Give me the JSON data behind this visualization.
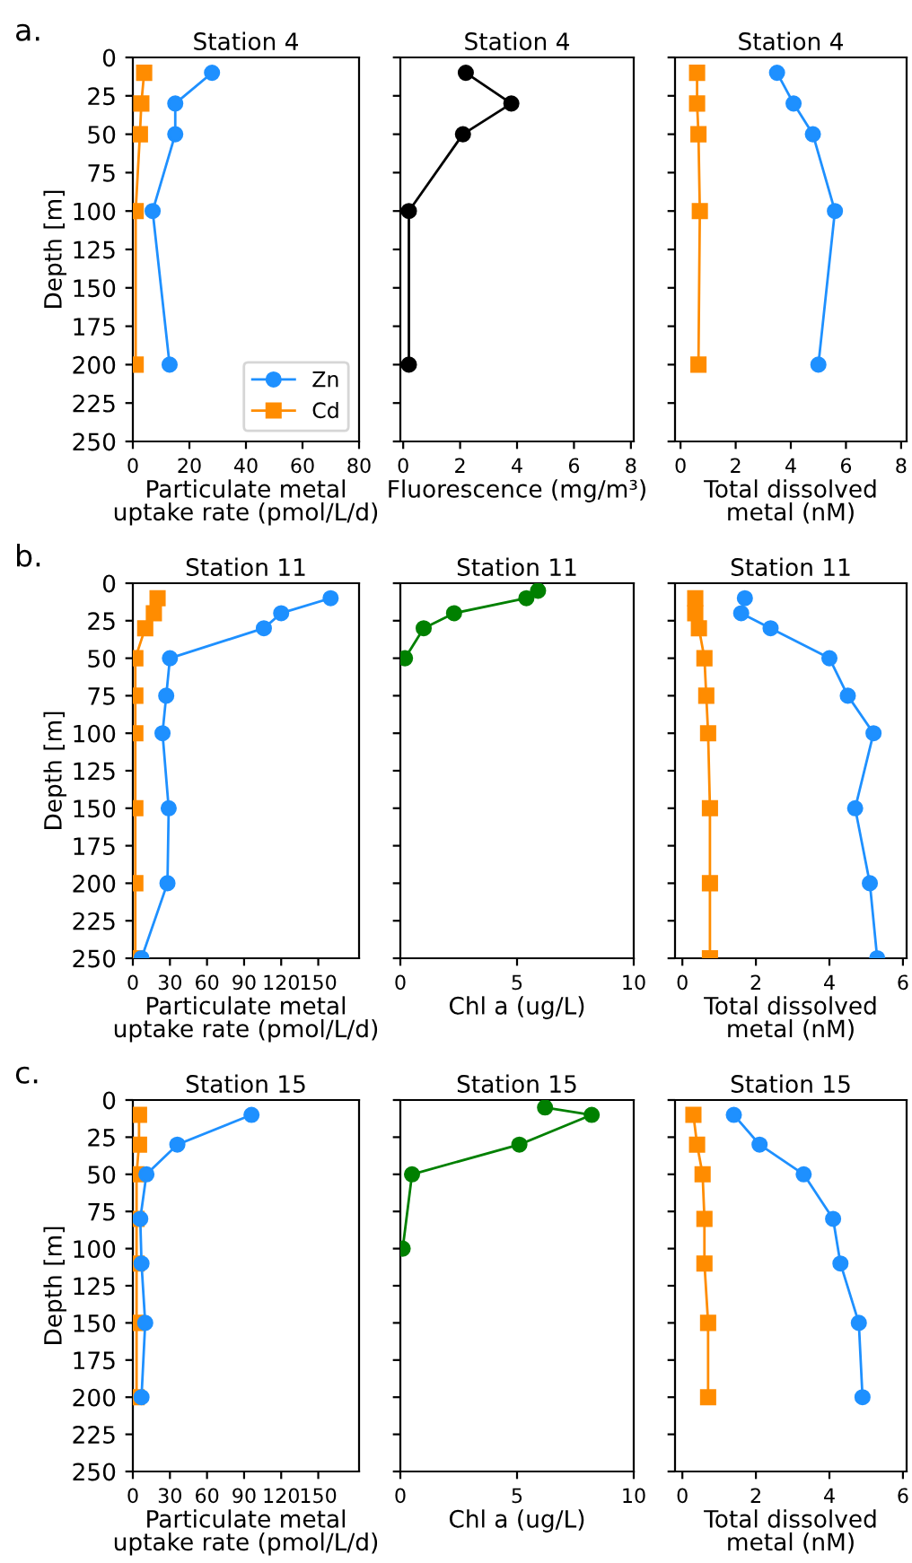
{
  "chart_data": [
    {
      "type": "line",
      "title": "Station 4",
      "xlabel": "Particulate metal\nuptake rate (pmol/L/d)",
      "ylabel": "Depth [m]",
      "annotations": [
        "a."
      ],
      "xlim": [
        0,
        80
      ],
      "xticks": [
        0,
        20,
        40,
        60,
        80
      ],
      "ylim": [
        250,
        0
      ],
      "yticks": [
        0,
        25,
        50,
        75,
        100,
        125,
        150,
        175,
        200,
        225,
        250
      ],
      "legend": "bottom right",
      "grid": false,
      "series": [
        {
          "name": "Zn",
          "color": "#1e90ff",
          "marker": "circle",
          "x": [
            28,
            15,
            15,
            7,
            13
          ],
          "values": [
            10,
            30,
            50,
            100,
            200
          ]
        },
        {
          "name": "Cd",
          "color": "#ff8c00",
          "marker": "square",
          "x": [
            4,
            3,
            2.5,
            1,
            1
          ],
          "values": [
            10,
            30,
            50,
            100,
            200
          ]
        }
      ]
    },
    {
      "type": "line",
      "title": "Station 4",
      "xlabel": "Fluorescence (mg/m³)",
      "xlim": [
        -0.1,
        8.1
      ],
      "xticks": [
        0,
        2,
        4,
        6,
        8
      ],
      "ylim": [
        250,
        0
      ],
      "yticks": [
        0,
        25,
        50,
        75,
        100,
        125,
        150,
        175,
        200,
        225,
        250
      ],
      "tick_labels": "x",
      "grid": false,
      "series": [
        {
          "color": "#000000",
          "marker": "circle",
          "x": [
            2.2,
            3.8,
            2.1,
            0.2,
            0.2
          ],
          "values": [
            10,
            30,
            50,
            100,
            200
          ]
        }
      ]
    },
    {
      "type": "line",
      "title": "Station 4",
      "xlabel": "Total dissolved\nmetal (nM)",
      "xlim": [
        -0.2,
        8.2
      ],
      "xticks": [
        0,
        2,
        4,
        6,
        8
      ],
      "ylim": [
        250,
        0
      ],
      "yticks": [
        0,
        25,
        50,
        75,
        100,
        125,
        150,
        175,
        200,
        225,
        250
      ],
      "tick_labels": "x",
      "grid": false,
      "series": [
        {
          "color": "#1e90ff",
          "marker": "circle",
          "x": [
            3.5,
            4.1,
            4.8,
            5.6,
            5.0
          ],
          "values": [
            10,
            30,
            50,
            100,
            200
          ]
        },
        {
          "color": "#ff8c00",
          "marker": "square",
          "x": [
            0.6,
            0.6,
            0.65,
            0.7,
            0.65
          ],
          "values": [
            10,
            30,
            50,
            100,
            200
          ]
        }
      ]
    },
    {
      "type": "line",
      "title": "Station 11",
      "xlabel": "Particulate metal\nuptake rate (pmol/L/d)",
      "ylabel": "Depth [m]",
      "annotations": [
        "b."
      ],
      "xlim": [
        0,
        183
      ],
      "xticks": [
        0,
        30,
        60,
        90,
        120,
        150
      ],
      "ylim": [
        250,
        0
      ],
      "yticks": [
        0,
        25,
        50,
        75,
        100,
        125,
        150,
        175,
        200,
        225,
        250
      ],
      "grid": false,
      "series": [
        {
          "color": "#1e90ff",
          "marker": "circle",
          "x": [
            160,
            120,
            106,
            30,
            27,
            24,
            29,
            28,
            7
          ],
          "values": [
            10,
            20,
            30,
            50,
            75,
            100,
            150,
            200,
            250
          ]
        },
        {
          "color": "#ff8c00",
          "marker": "square",
          "x": [
            20,
            17,
            10,
            2,
            2,
            2,
            2,
            2,
            2
          ],
          "values": [
            10,
            20,
            30,
            50,
            75,
            100,
            150,
            200,
            250
          ]
        }
      ]
    },
    {
      "type": "line",
      "title": "Station 11",
      "xlabel": "Chl a (ug/L)",
      "xlim": [
        0,
        10
      ],
      "xticks": [
        0,
        5,
        10
      ],
      "ylim": [
        250,
        0
      ],
      "yticks": [
        0,
        25,
        50,
        75,
        100,
        125,
        150,
        175,
        200,
        225,
        250
      ],
      "tick_labels": "x",
      "grid": false,
      "series": [
        {
          "color": "#008000",
          "marker": "circle",
          "x": [
            5.9,
            5.4,
            2.3,
            1.0,
            0.2
          ],
          "values": [
            5,
            10,
            20,
            30,
            50
          ]
        }
      ]
    },
    {
      "type": "line",
      "title": "Station 11",
      "xlabel": "Total dissolved\nmetal (nM)",
      "xlim": [
        -0.2,
        6.1
      ],
      "xticks": [
        0,
        2,
        4,
        6
      ],
      "ylim": [
        250,
        0
      ],
      "yticks": [
        0,
        25,
        50,
        75,
        100,
        125,
        150,
        175,
        200,
        225,
        250
      ],
      "tick_labels": "x",
      "grid": false,
      "series": [
        {
          "color": "#1e90ff",
          "marker": "circle",
          "x": [
            1.7,
            1.6,
            2.4,
            4.0,
            4.5,
            5.2,
            4.7,
            5.1,
            5.3
          ],
          "values": [
            10,
            20,
            30,
            50,
            75,
            100,
            150,
            200,
            250
          ]
        },
        {
          "color": "#ff8c00",
          "marker": "square",
          "x": [
            0.35,
            0.35,
            0.45,
            0.6,
            0.65,
            0.7,
            0.75,
            0.75,
            0.75
          ],
          "values": [
            10,
            20,
            30,
            50,
            75,
            100,
            150,
            200,
            250
          ]
        }
      ]
    },
    {
      "type": "line",
      "title": "Station 15",
      "xlabel": "Particulate metal\nuptake rate (pmol/L/d)",
      "ylabel": "Depth [m]",
      "annotations": [
        "c."
      ],
      "xlim": [
        0,
        183
      ],
      "xticks": [
        0,
        30,
        60,
        90,
        120,
        150
      ],
      "ylim": [
        250,
        0
      ],
      "yticks": [
        0,
        25,
        50,
        75,
        100,
        125,
        150,
        175,
        200,
        225,
        250
      ],
      "grid": false,
      "series": [
        {
          "color": "#1e90ff",
          "marker": "circle",
          "x": [
            96,
            36,
            11,
            6,
            7,
            10,
            7
          ],
          "values": [
            10,
            30,
            50,
            80,
            110,
            150,
            200
          ]
        },
        {
          "color": "#ff8c00",
          "marker": "square",
          "x": [
            5,
            5,
            3,
            3,
            3,
            3,
            3
          ],
          "values": [
            10,
            30,
            50,
            80,
            110,
            150,
            200
          ]
        }
      ]
    },
    {
      "type": "line",
      "title": "Station 15",
      "xlabel": "Chl a (ug/L)",
      "xlim": [
        0,
        10
      ],
      "xticks": [
        0,
        5,
        10
      ],
      "ylim": [
        250,
        0
      ],
      "yticks": [
        0,
        25,
        50,
        75,
        100,
        125,
        150,
        175,
        200,
        225,
        250
      ],
      "tick_labels": "x",
      "grid": false,
      "series": [
        {
          "color": "#008000",
          "marker": "circle",
          "x": [
            6.2,
            8.2,
            5.1,
            0.5,
            0.1
          ],
          "values": [
            5,
            10,
            30,
            50,
            100
          ]
        }
      ]
    },
    {
      "type": "line",
      "title": "Station 15",
      "xlabel": "Total dissolved\nmetal (nM)",
      "xlim": [
        -0.2,
        6.1
      ],
      "xticks": [
        0,
        2,
        4,
        6
      ],
      "ylim": [
        250,
        0
      ],
      "yticks": [
        0,
        25,
        50,
        75,
        100,
        125,
        150,
        175,
        200,
        225,
        250
      ],
      "tick_labels": "x",
      "grid": false,
      "series": [
        {
          "color": "#1e90ff",
          "marker": "circle",
          "x": [
            1.4,
            2.1,
            3.3,
            4.1,
            4.3,
            4.8,
            4.9
          ],
          "values": [
            10,
            30,
            50,
            80,
            110,
            150,
            200
          ]
        },
        {
          "color": "#ff8c00",
          "marker": "square",
          "x": [
            0.3,
            0.4,
            0.55,
            0.6,
            0.6,
            0.7,
            0.7
          ],
          "values": [
            10,
            30,
            50,
            80,
            110,
            150,
            200
          ]
        }
      ]
    }
  ]
}
